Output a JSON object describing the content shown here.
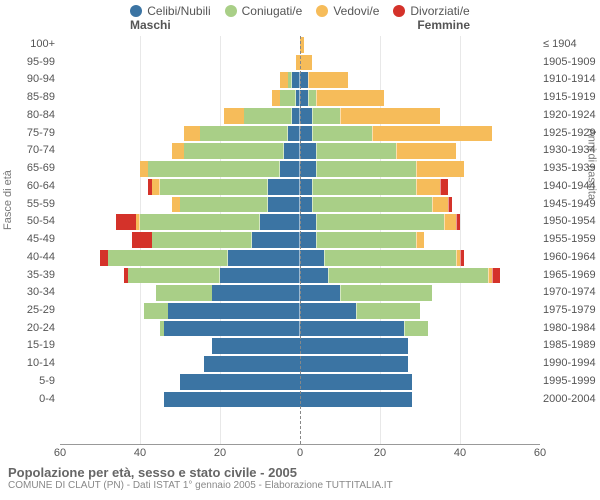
{
  "legend": [
    {
      "label": "Celibi/Nubili",
      "color": "#3b74a3"
    },
    {
      "label": "Coniugati/e",
      "color": "#a9cf87"
    },
    {
      "label": "Vedovi/e",
      "color": "#f6bc5a"
    },
    {
      "label": "Divorziati/e",
      "color": "#d4322a"
    }
  ],
  "headers": {
    "male": "Maschi",
    "female": "Femmine"
  },
  "axis": {
    "left_title": "Fasce di età",
    "right_title": "Anni di nascita",
    "xmax": 60,
    "ticks": [
      60,
      40,
      20,
      0,
      20,
      40,
      60
    ]
  },
  "colors": {
    "celibi": "#3b74a3",
    "coniugati": "#a9cf87",
    "vedovi": "#f6bc5a",
    "divorziati": "#d4322a",
    "grid": "#e8e8e8",
    "axis": "#999"
  },
  "footer": {
    "title": "Popolazione per età, sesso e stato civile - 2005",
    "sub": "COMUNE DI CLAUT (PN) - Dati ISTAT 1° gennaio 2005 - Elaborazione TUTTITALIA.IT"
  },
  "rows": [
    {
      "age": "100+",
      "birth": "≤ 1904",
      "m": {
        "c": 0,
        "g": 0,
        "v": 0,
        "d": 0
      },
      "f": {
        "c": 0,
        "g": 0,
        "v": 1,
        "d": 0
      }
    },
    {
      "age": "95-99",
      "birth": "1905-1909",
      "m": {
        "c": 0,
        "g": 0,
        "v": 1,
        "d": 0
      },
      "f": {
        "c": 0,
        "g": 0,
        "v": 3,
        "d": 0
      }
    },
    {
      "age": "90-94",
      "birth": "1910-1914",
      "m": {
        "c": 2,
        "g": 1,
        "v": 2,
        "d": 0
      },
      "f": {
        "c": 2,
        "g": 0,
        "v": 10,
        "d": 0
      }
    },
    {
      "age": "85-89",
      "birth": "1915-1919",
      "m": {
        "c": 1,
        "g": 4,
        "v": 2,
        "d": 0
      },
      "f": {
        "c": 2,
        "g": 2,
        "v": 17,
        "d": 0
      }
    },
    {
      "age": "80-84",
      "birth": "1920-1924",
      "m": {
        "c": 2,
        "g": 12,
        "v": 5,
        "d": 0
      },
      "f": {
        "c": 3,
        "g": 7,
        "v": 25,
        "d": 0
      }
    },
    {
      "age": "75-79",
      "birth": "1925-1929",
      "m": {
        "c": 3,
        "g": 22,
        "v": 4,
        "d": 0
      },
      "f": {
        "c": 3,
        "g": 15,
        "v": 30,
        "d": 0
      }
    },
    {
      "age": "70-74",
      "birth": "1930-1934",
      "m": {
        "c": 4,
        "g": 25,
        "v": 3,
        "d": 0
      },
      "f": {
        "c": 4,
        "g": 20,
        "v": 15,
        "d": 0
      }
    },
    {
      "age": "65-69",
      "birth": "1935-1939",
      "m": {
        "c": 5,
        "g": 33,
        "v": 2,
        "d": 0
      },
      "f": {
        "c": 4,
        "g": 25,
        "v": 12,
        "d": 0
      }
    },
    {
      "age": "60-64",
      "birth": "1940-1944",
      "m": {
        "c": 8,
        "g": 27,
        "v": 2,
        "d": 1
      },
      "f": {
        "c": 3,
        "g": 26,
        "v": 6,
        "d": 2
      }
    },
    {
      "age": "55-59",
      "birth": "1945-1949",
      "m": {
        "c": 8,
        "g": 22,
        "v": 2,
        "d": 0
      },
      "f": {
        "c": 3,
        "g": 30,
        "v": 4,
        "d": 1
      }
    },
    {
      "age": "50-54",
      "birth": "1950-1954",
      "m": {
        "c": 10,
        "g": 30,
        "v": 1,
        "d": 5
      },
      "f": {
        "c": 4,
        "g": 32,
        "v": 3,
        "d": 1
      }
    },
    {
      "age": "45-49",
      "birth": "1955-1959",
      "m": {
        "c": 12,
        "g": 25,
        "v": 0,
        "d": 5
      },
      "f": {
        "c": 4,
        "g": 25,
        "v": 2,
        "d": 0
      }
    },
    {
      "age": "40-44",
      "birth": "1960-1964",
      "m": {
        "c": 18,
        "g": 30,
        "v": 0,
        "d": 2
      },
      "f": {
        "c": 6,
        "g": 33,
        "v": 1,
        "d": 1
      }
    },
    {
      "age": "35-39",
      "birth": "1965-1969",
      "m": {
        "c": 20,
        "g": 23,
        "v": 0,
        "d": 1
      },
      "f": {
        "c": 7,
        "g": 40,
        "v": 1,
        "d": 2
      }
    },
    {
      "age": "30-34",
      "birth": "1970-1974",
      "m": {
        "c": 22,
        "g": 14,
        "v": 0,
        "d": 0
      },
      "f": {
        "c": 10,
        "g": 23,
        "v": 0,
        "d": 0
      }
    },
    {
      "age": "25-29",
      "birth": "1975-1979",
      "m": {
        "c": 33,
        "g": 6,
        "v": 0,
        "d": 0
      },
      "f": {
        "c": 14,
        "g": 16,
        "v": 0,
        "d": 0
      }
    },
    {
      "age": "20-24",
      "birth": "1980-1984",
      "m": {
        "c": 34,
        "g": 1,
        "v": 0,
        "d": 0
      },
      "f": {
        "c": 26,
        "g": 6,
        "v": 0,
        "d": 0
      }
    },
    {
      "age": "15-19",
      "birth": "1985-1989",
      "m": {
        "c": 22,
        "g": 0,
        "v": 0,
        "d": 0
      },
      "f": {
        "c": 27,
        "g": 0,
        "v": 0,
        "d": 0
      }
    },
    {
      "age": "10-14",
      "birth": "1990-1994",
      "m": {
        "c": 24,
        "g": 0,
        "v": 0,
        "d": 0
      },
      "f": {
        "c": 27,
        "g": 0,
        "v": 0,
        "d": 0
      }
    },
    {
      "age": "5-9",
      "birth": "1995-1999",
      "m": {
        "c": 30,
        "g": 0,
        "v": 0,
        "d": 0
      },
      "f": {
        "c": 28,
        "g": 0,
        "v": 0,
        "d": 0
      }
    },
    {
      "age": "0-4",
      "birth": "2000-2004",
      "m": {
        "c": 34,
        "g": 0,
        "v": 0,
        "d": 0
      },
      "f": {
        "c": 28,
        "g": 0,
        "v": 0,
        "d": 0
      }
    }
  ]
}
